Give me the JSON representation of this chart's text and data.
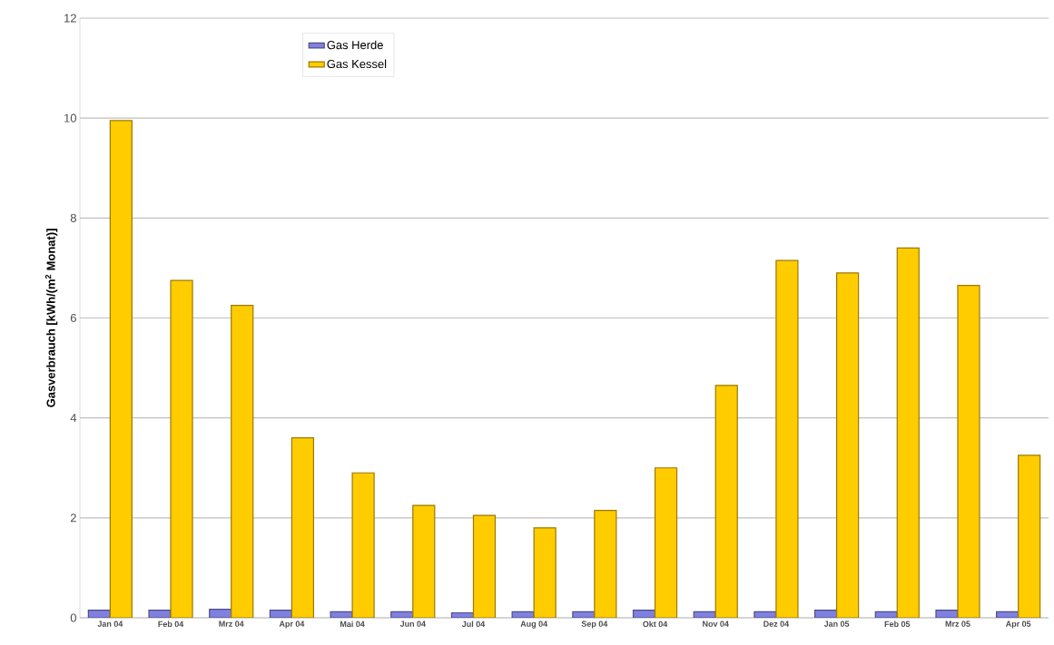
{
  "chart_data": {
    "type": "bar",
    "ylabel": "Gasverbrauch [kWh/(m$^{2}$ Monat)]",
    "categories": [
      "Jan 04",
      "Feb 04",
      "Mrz 04",
      "Apr 04",
      "Mai 04",
      "Jun 04",
      "Jul 04",
      "Aug 04",
      "Sep 04",
      "Okt 04",
      "Nov 04",
      "Dez 04",
      "Jan 05",
      "Feb 05",
      "Mrz 05",
      "Apr 05"
    ],
    "series": [
      {
        "name": "Gas Herde",
        "color": "#8080e0",
        "values": [
          0.15,
          0.15,
          0.17,
          0.15,
          0.12,
          0.12,
          0.1,
          0.12,
          0.12,
          0.15,
          0.12,
          0.12,
          0.15,
          0.12,
          0.15,
          0.12
        ]
      },
      {
        "name": "Gas Kessel",
        "color": "#ffcc00",
        "values": [
          9.95,
          6.75,
          6.25,
          3.6,
          2.9,
          2.25,
          2.05,
          1.8,
          2.15,
          3.0,
          4.65,
          7.15,
          6.9,
          7.4,
          6.65,
          3.25
        ]
      }
    ],
    "ylim": [
      0,
      12
    ],
    "yticks": [
      0,
      2,
      4,
      6,
      8,
      10,
      12
    ],
    "grid": "y",
    "legend": "top left"
  }
}
